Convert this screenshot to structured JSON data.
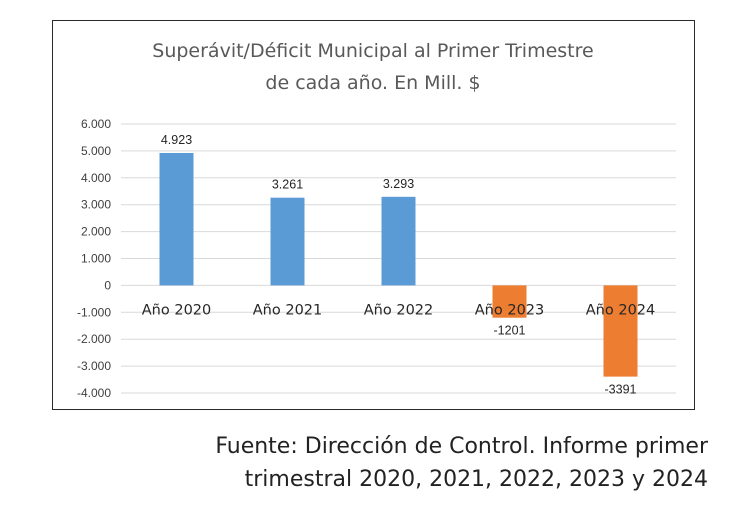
{
  "chart_data": {
    "type": "bar",
    "title": [
      "Superávit/Déficit Municipal al Primer Trimestre",
      "de cada año. En Mill. $"
    ],
    "categories": [
      "Año 2020",
      "Año 2021",
      "Año 2022",
      "Año 2023",
      "Año 2024"
    ],
    "values": [
      4923,
      3261,
      3293,
      -1201,
      -3391
    ],
    "data_labels": [
      "4.923",
      "3.261",
      "3.293",
      "-1201",
      "-3391"
    ],
    "ylim": [
      -4000,
      6000
    ],
    "yticks": [
      6000,
      5000,
      4000,
      3000,
      2000,
      1000,
      0,
      -1000,
      -2000,
      -3000,
      -4000
    ],
    "ytick_labels": [
      "6.000",
      "5.000",
      "4.000",
      "3.000",
      "2.000",
      "1.000",
      "0",
      "-1.000",
      "-2.000",
      "-3.000",
      "-4.000"
    ],
    "xlabel": "",
    "ylabel": "",
    "grid": true,
    "legend": "none",
    "colors": {
      "positive": "#5b9bd5",
      "negative": "#ed7d31",
      "grid": "#d9d9d9"
    }
  },
  "source": {
    "line1": "Fuente: Dirección de Control. Informe primer",
    "line2": "trimestral 2020, 2021, 2022, 2023 y 2024"
  }
}
